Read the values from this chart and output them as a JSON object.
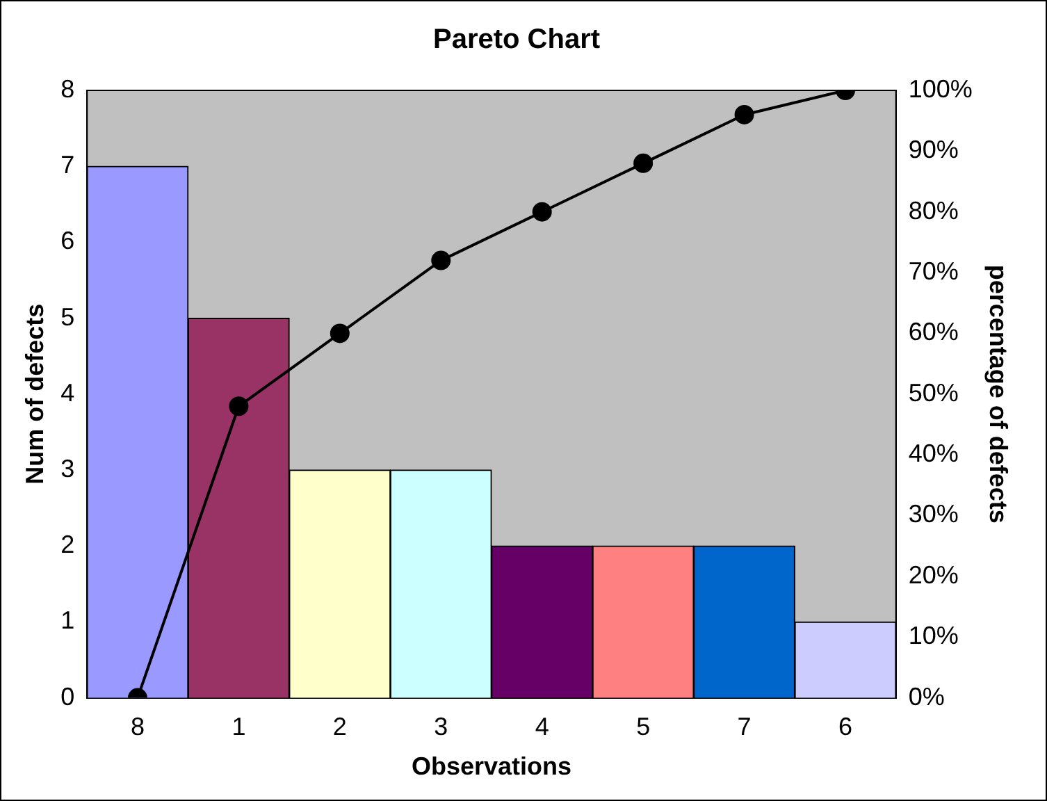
{
  "chart_data": {
    "type": "bar",
    "title": "Pareto Chart",
    "xlabel": "Observations",
    "ylabel": "Num of defects",
    "y2label": "percentage of defects",
    "categories": [
      "8",
      "1",
      "2",
      "3",
      "4",
      "5",
      "7",
      "6"
    ],
    "ylim": [
      0,
      8
    ],
    "yticks": [
      0,
      1,
      2,
      3,
      4,
      5,
      6,
      7,
      8
    ],
    "y2lim": [
      0,
      100
    ],
    "y2ticks": [
      {
        "value": 0,
        "label": "0%"
      },
      {
        "value": 10,
        "label": "10%"
      },
      {
        "value": 20,
        "label": "20%"
      },
      {
        "value": 30,
        "label": "30%"
      },
      {
        "value": 40,
        "label": "40%"
      },
      {
        "value": 50,
        "label": "50%"
      },
      {
        "value": 60,
        "label": "60%"
      },
      {
        "value": 70,
        "label": "70%"
      },
      {
        "value": 80,
        "label": "80%"
      },
      {
        "value": 90,
        "label": "90%"
      },
      {
        "value": 100,
        "label": "100%"
      }
    ],
    "series": [
      {
        "colors": [
          "#9999ff",
          "#993366",
          "#ffffcc",
          "#ccffff",
          "#660066",
          "#ff8080",
          "#0066cc",
          "#ccccff"
        ],
        "values": [
          7,
          5,
          3,
          3,
          2,
          2,
          2,
          1
        ]
      },
      {
        "type": "line",
        "axis": "y2",
        "color": "#000000",
        "values": [
          0,
          48,
          60,
          72,
          80,
          88,
          96,
          100
        ]
      }
    ],
    "marker": "circle",
    "line_style": "solid",
    "grid": false,
    "legend": false
  }
}
